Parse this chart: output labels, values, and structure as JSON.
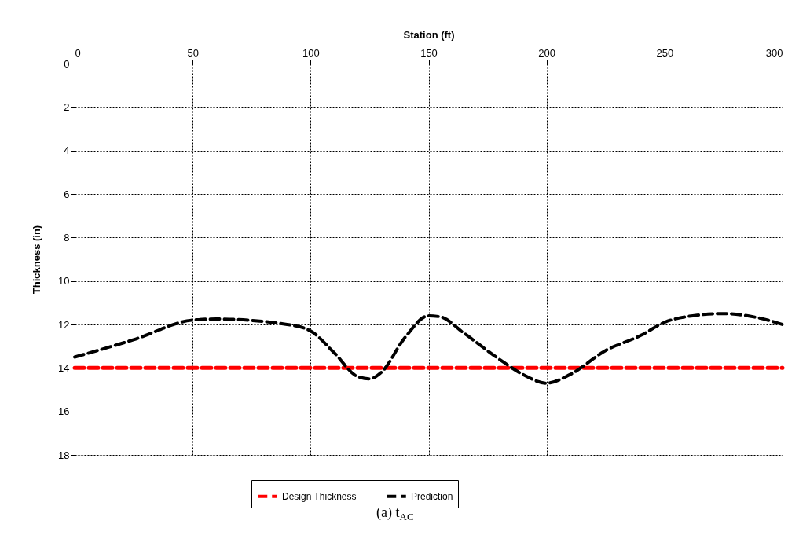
{
  "chart_data": {
    "type": "line",
    "xlabel": "Station (ft)",
    "ylabel": "Thickness (in)",
    "xlim": [
      0,
      300
    ],
    "xticks": [
      0,
      50,
      100,
      150,
      200,
      250,
      300
    ],
    "ylim": [
      18,
      0
    ],
    "yticks": [
      0,
      2,
      4,
      6,
      8,
      10,
      12,
      14,
      16,
      18
    ],
    "grid": true,
    "legend": "bottom",
    "marker": "none",
    "series": [
      {
        "name": "Design Thickness",
        "color": "#ff0000",
        "line_style": "dashed",
        "x": [
          0,
          300
        ],
        "values": [
          14,
          14
        ]
      },
      {
        "name": "Prediction",
        "color": "#000000",
        "line_style": "dashed",
        "x": [
          0,
          25,
          50,
          60,
          90,
          100,
          110,
          120,
          125,
          130,
          140,
          150,
          155,
          165,
          180,
          190,
          200,
          210,
          225,
          240,
          250,
          262,
          275,
          290,
          300
        ],
        "values": [
          13.5,
          12.7,
          11.8,
          11.75,
          12.0,
          12.3,
          13.3,
          14.4,
          14.5,
          14.2,
          12.6,
          11.6,
          11.65,
          12.4,
          13.6,
          14.3,
          14.7,
          14.3,
          13.2,
          12.5,
          11.9,
          11.6,
          11.5,
          11.7,
          12.0
        ]
      }
    ],
    "annotations": [
      "(a) t$_{AC}$"
    ]
  }
}
